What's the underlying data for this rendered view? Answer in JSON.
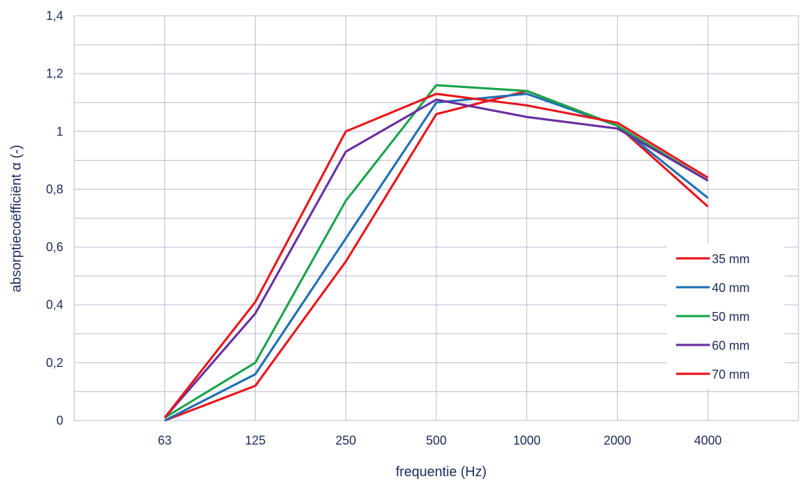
{
  "chart_data": {
    "type": "line",
    "xlabel": "frequentie (Hz)",
    "ylabel": "absorptiecoëfficiënt α (-)",
    "categories": [
      "63",
      "125",
      "250",
      "500",
      "1000",
      "2000",
      "4000"
    ],
    "ylim": [
      0,
      1.4
    ],
    "yticks": [
      0,
      0.2,
      0.4,
      0.6,
      0.8,
      1,
      1.2,
      1.4
    ],
    "ytick_labels": [
      "0",
      "0,2",
      "0,4",
      "0,6",
      "0,8",
      "1",
      "1,2",
      "1,4"
    ],
    "grid": true,
    "legend_position": "right",
    "series": [
      {
        "name": "35 mm",
        "color": "#e8151b",
        "values": [
          0.0,
          0.12,
          0.55,
          1.06,
          1.14,
          1.02,
          0.74
        ]
      },
      {
        "name": "40 mm",
        "color": "#1f6fb4",
        "values": [
          0.0,
          0.16,
          0.63,
          1.1,
          1.13,
          1.02,
          0.77
        ]
      },
      {
        "name": "50 mm",
        "color": "#1aa34a",
        "values": [
          0.01,
          0.2,
          0.76,
          1.16,
          1.14,
          1.02,
          0.83
        ]
      },
      {
        "name": "60 mm",
        "color": "#6a2fa0",
        "values": [
          0.01,
          0.37,
          0.93,
          1.11,
          1.05,
          1.01,
          0.83
        ]
      },
      {
        "name": "70 mm",
        "color": "#e8151b",
        "values": [
          0.01,
          0.41,
          1.0,
          1.13,
          1.09,
          1.03,
          0.84
        ]
      }
    ]
  }
}
